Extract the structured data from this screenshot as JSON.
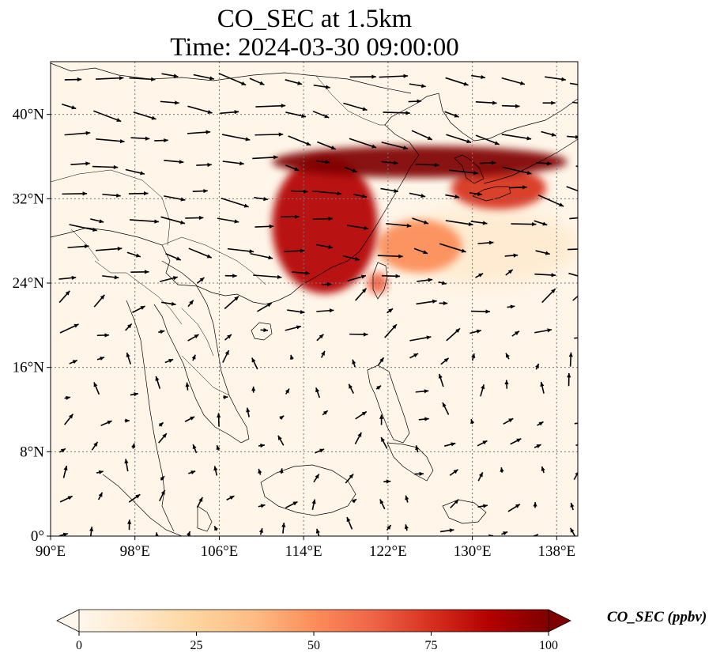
{
  "title": {
    "line1": "CO_SEC at 1.5km",
    "line2": "Time: 2024-03-30 09:00:00"
  },
  "colorbar": {
    "label": "CO_SEC (ppbv)",
    "ticks": [
      "0",
      "25",
      "50",
      "75",
      "100"
    ],
    "range": [
      0,
      100
    ],
    "extend": "both",
    "colormap": "OrRd",
    "colors": [
      "#fff7ec",
      "#fee8c8",
      "#fdd49e",
      "#fdbb84",
      "#fc8d59",
      "#ef6548",
      "#d7301f",
      "#b30000",
      "#7f0000"
    ]
  },
  "map": {
    "lon_range": [
      90,
      140
    ],
    "lat_range": [
      0,
      45
    ],
    "x_ticks": [
      "90°E",
      "98°E",
      "106°E",
      "114°E",
      "122°E",
      "130°E",
      "138°E"
    ],
    "y_ticks": [
      "0°",
      "8°N",
      "16°N",
      "24°N",
      "32°N",
      "40°N"
    ],
    "gridlines": true,
    "background_color": "#fff5e8",
    "plume_regions": [
      {
        "name": "northern-band",
        "lon": [
          111,
          139
        ],
        "lat": [
          34,
          37
        ],
        "value": 95
      },
      {
        "name": "east-china-core",
        "lon": [
          111,
          121
        ],
        "lat": [
          23,
          36
        ],
        "value": 85
      },
      {
        "name": "korea-japan-extension",
        "lon": [
          128,
          137
        ],
        "lat": [
          31,
          35
        ],
        "value": 80
      },
      {
        "name": "east-china-sea-arm",
        "lon": [
          121,
          129
        ],
        "lat": [
          25,
          30
        ],
        "value": 55
      },
      {
        "name": "taiwan-patch",
        "lon": [
          120,
          122
        ],
        "lat": [
          23,
          25
        ],
        "value": 60
      },
      {
        "name": "pacific-outflow",
        "lon": [
          122,
          140
        ],
        "lat": [
          24,
          31
        ],
        "value": 15
      }
    ]
  }
}
